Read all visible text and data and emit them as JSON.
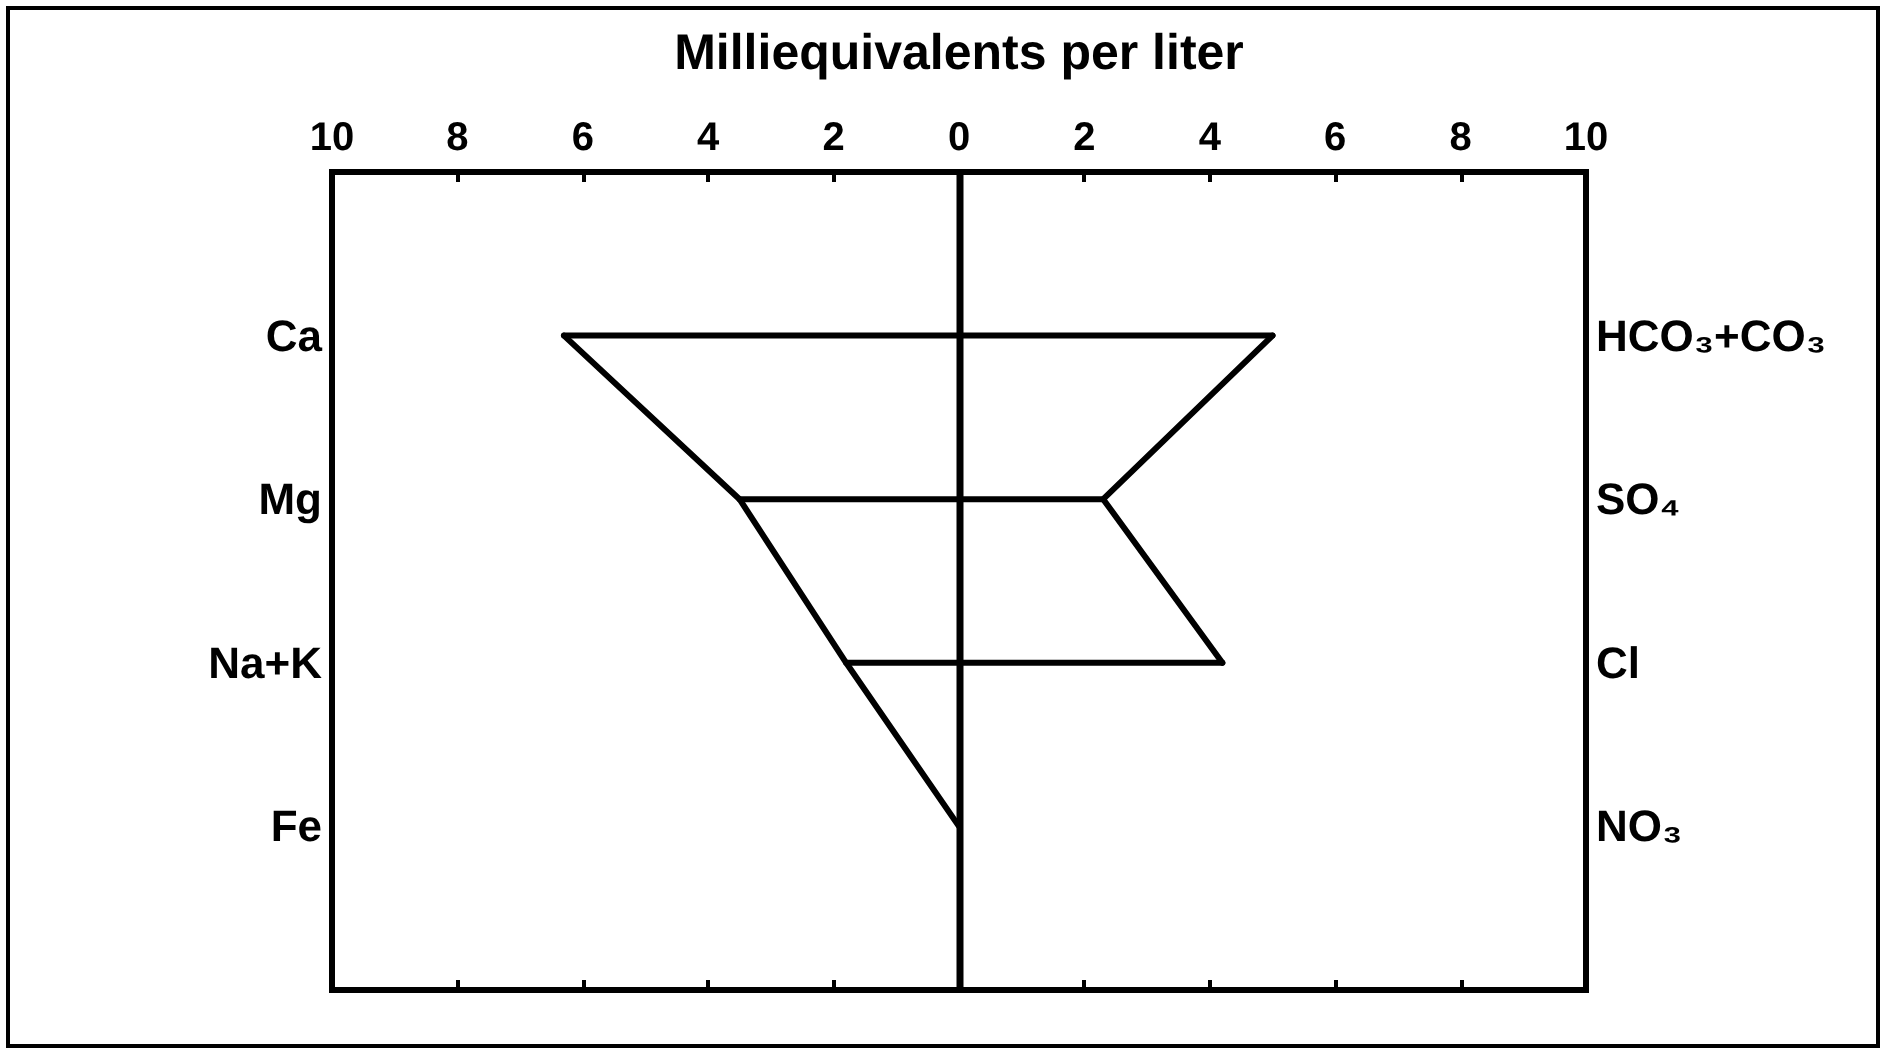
{
  "chart_data": {
    "type": "line",
    "orientation": "horizontal",
    "xlabel": "Milliequivalents per liter",
    "categories": [
      "Ca",
      "Mg",
      "Na+K",
      "Fe"
    ],
    "y2_categories": [
      "HCO₃+CO₃",
      "SO₄",
      "Cl",
      "NO₃"
    ],
    "series": [
      {
        "color": "#000000",
        "values": [
          -6.3,
          -3.5,
          -1.8,
          0
        ]
      },
      {
        "color": "#000000",
        "values": [
          5.0,
          2.3,
          4.2,
          null
        ]
      },
      {
        "color": "#000000",
        "x": [
          "Ca",
          "Ca"
        ],
        "values": [
          -6.3,
          5.0
        ]
      },
      {
        "color": "#000000",
        "x": [
          "Mg",
          "Mg"
        ],
        "values": [
          -3.5,
          2.3
        ]
      },
      {
        "color": "#000000",
        "x": [
          "Na+K",
          "Na+K"
        ],
        "values": [
          -1.8,
          4.2
        ]
      }
    ],
    "xlim": [
      -10,
      10
    ],
    "xticks": [
      {
        "value": -10,
        "label": "10"
      },
      {
        "value": -8,
        "label": "8"
      },
      {
        "value": -6,
        "label": "6"
      },
      {
        "value": -4,
        "label": "4"
      },
      {
        "value": -2,
        "label": "2"
      },
      0,
      2,
      4,
      6,
      8,
      10
    ],
    "ref_lines": [
      {
        "axis": "x",
        "value": 0,
        "color": "#000000"
      }
    ],
    "marker": "none"
  }
}
